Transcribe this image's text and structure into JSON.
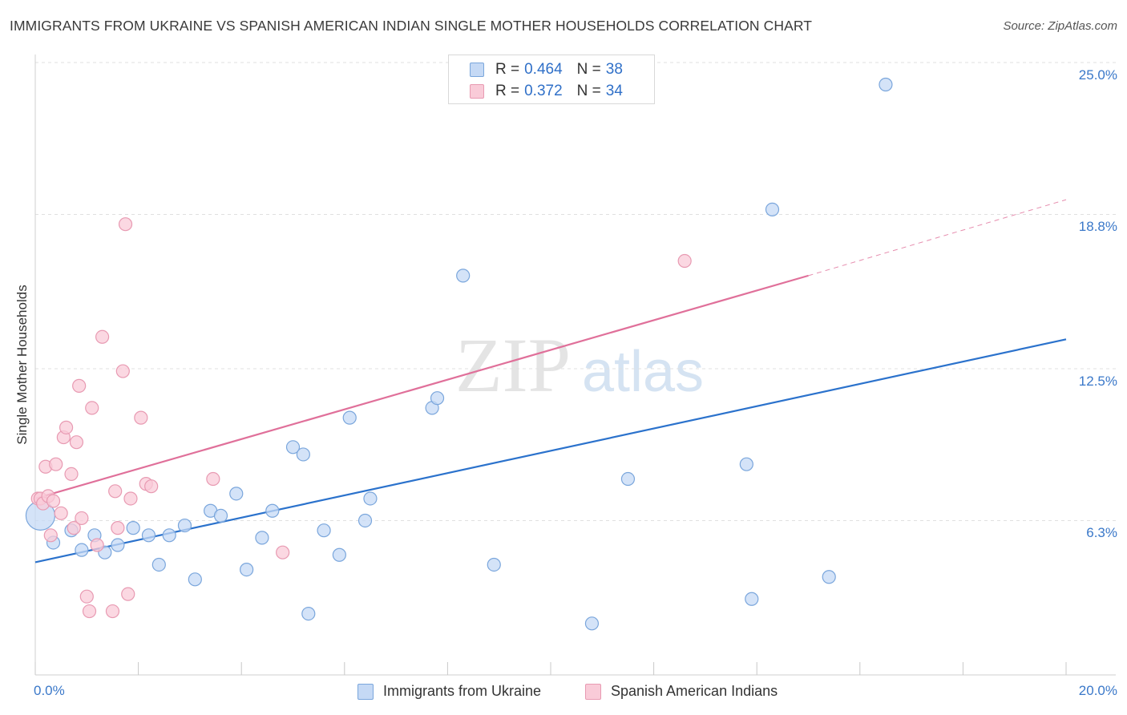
{
  "title": "IMMIGRANTS FROM UKRAINE VS SPANISH AMERICAN INDIAN SINGLE MOTHER HOUSEHOLDS CORRELATION CHART",
  "source": "Source: ZipAtlas.com",
  "watermark": {
    "zip": "ZIP",
    "atlas": "atlas"
  },
  "legend": {
    "rows": [
      {
        "r_label": "R =",
        "r_value": "0.464",
        "n_label": "N =",
        "n_value": "38"
      },
      {
        "r_label": "R =",
        "r_value": "0.372",
        "n_label": "N =",
        "n_value": "34"
      }
    ]
  },
  "colors": {
    "blue_fill": "#c5d9f5",
    "blue_stroke": "#7aa6dc",
    "blue_line": "#2b72cc",
    "pink_fill": "#f9cbd8",
    "pink_stroke": "#e89ab2",
    "pink_line": "#e0709a",
    "tick_text": "#3a78c9",
    "grid": "#e0e0e0"
  },
  "chart_data": {
    "type": "scatter",
    "title": "IMMIGRANTS FROM UKRAINE VS SPANISH AMERICAN INDIAN SINGLE MOTHER HOUSEHOLDS CORRELATION CHART",
    "xlabel": "",
    "ylabel": "Single Mother Households",
    "xlim": [
      0,
      20
    ],
    "ylim": [
      0,
      25
    ],
    "x_tick_labels": [
      "0.0%",
      "20.0%"
    ],
    "y_ticks": [
      6.3,
      12.5,
      18.8,
      25.0
    ],
    "y_tick_labels": [
      "6.3%",
      "12.5%",
      "18.8%",
      "25.0%"
    ],
    "series": [
      {
        "name": "Immigrants from Ukraine",
        "color": "blue",
        "trend": {
          "x0": 0,
          "y0": 4.6,
          "x1": 20,
          "y1": 13.7
        },
        "points": [
          [
            0.1,
            6.5
          ],
          [
            0.35,
            5.4
          ],
          [
            0.7,
            5.9
          ],
          [
            0.9,
            5.1
          ],
          [
            1.15,
            5.7
          ],
          [
            1.35,
            5.0
          ],
          [
            1.6,
            5.3
          ],
          [
            1.9,
            6.0
          ],
          [
            2.2,
            5.7
          ],
          [
            2.4,
            4.5
          ],
          [
            2.6,
            5.7
          ],
          [
            2.9,
            6.1
          ],
          [
            3.1,
            3.9
          ],
          [
            3.4,
            6.7
          ],
          [
            3.6,
            6.5
          ],
          [
            3.9,
            7.4
          ],
          [
            4.1,
            4.3
          ],
          [
            4.4,
            5.6
          ],
          [
            4.6,
            6.7
          ],
          [
            5.0,
            9.3
          ],
          [
            5.2,
            9.0
          ],
          [
            5.3,
            2.5
          ],
          [
            5.6,
            5.9
          ],
          [
            5.9,
            4.9
          ],
          [
            6.1,
            10.5
          ],
          [
            6.4,
            6.3
          ],
          [
            6.5,
            7.2
          ],
          [
            7.7,
            10.9
          ],
          [
            7.8,
            11.3
          ],
          [
            8.3,
            16.3
          ],
          [
            8.9,
            4.5
          ],
          [
            10.8,
            2.1
          ],
          [
            11.5,
            8.0
          ],
          [
            13.8,
            8.6
          ],
          [
            13.9,
            3.1
          ],
          [
            14.3,
            19.0
          ],
          [
            15.4,
            4.0
          ],
          [
            16.5,
            24.1
          ]
        ]
      },
      {
        "name": "Spanish American Indians",
        "color": "pink",
        "trend": {
          "x0": 0,
          "y0": 7.2,
          "x1": 15,
          "y1": 16.3,
          "dash_x1": 20,
          "dash_y1": 19.4
        },
        "points": [
          [
            0.05,
            7.2
          ],
          [
            0.1,
            7.2
          ],
          [
            0.15,
            7.0
          ],
          [
            0.2,
            8.5
          ],
          [
            0.25,
            7.3
          ],
          [
            0.3,
            5.7
          ],
          [
            0.35,
            7.1
          ],
          [
            0.4,
            8.6
          ],
          [
            0.5,
            6.6
          ],
          [
            0.55,
            9.7
          ],
          [
            0.6,
            10.1
          ],
          [
            0.7,
            8.2
          ],
          [
            0.75,
            6.0
          ],
          [
            0.8,
            9.5
          ],
          [
            0.85,
            11.8
          ],
          [
            0.9,
            6.4
          ],
          [
            1.0,
            3.2
          ],
          [
            1.05,
            2.6
          ],
          [
            1.1,
            10.9
          ],
          [
            1.2,
            5.3
          ],
          [
            1.3,
            13.8
          ],
          [
            1.5,
            2.6
          ],
          [
            1.55,
            7.5
          ],
          [
            1.6,
            6.0
          ],
          [
            1.7,
            12.4
          ],
          [
            1.75,
            18.4
          ],
          [
            1.8,
            3.3
          ],
          [
            1.85,
            7.2
          ],
          [
            2.05,
            10.5
          ],
          [
            2.15,
            7.8
          ],
          [
            2.25,
            7.7
          ],
          [
            3.45,
            8.0
          ],
          [
            4.8,
            5.0
          ],
          [
            12.6,
            16.9
          ]
        ]
      }
    ]
  },
  "bottom_legend": [
    {
      "label": "Immigrants from Ukraine"
    },
    {
      "label": "Spanish American Indians"
    }
  ]
}
